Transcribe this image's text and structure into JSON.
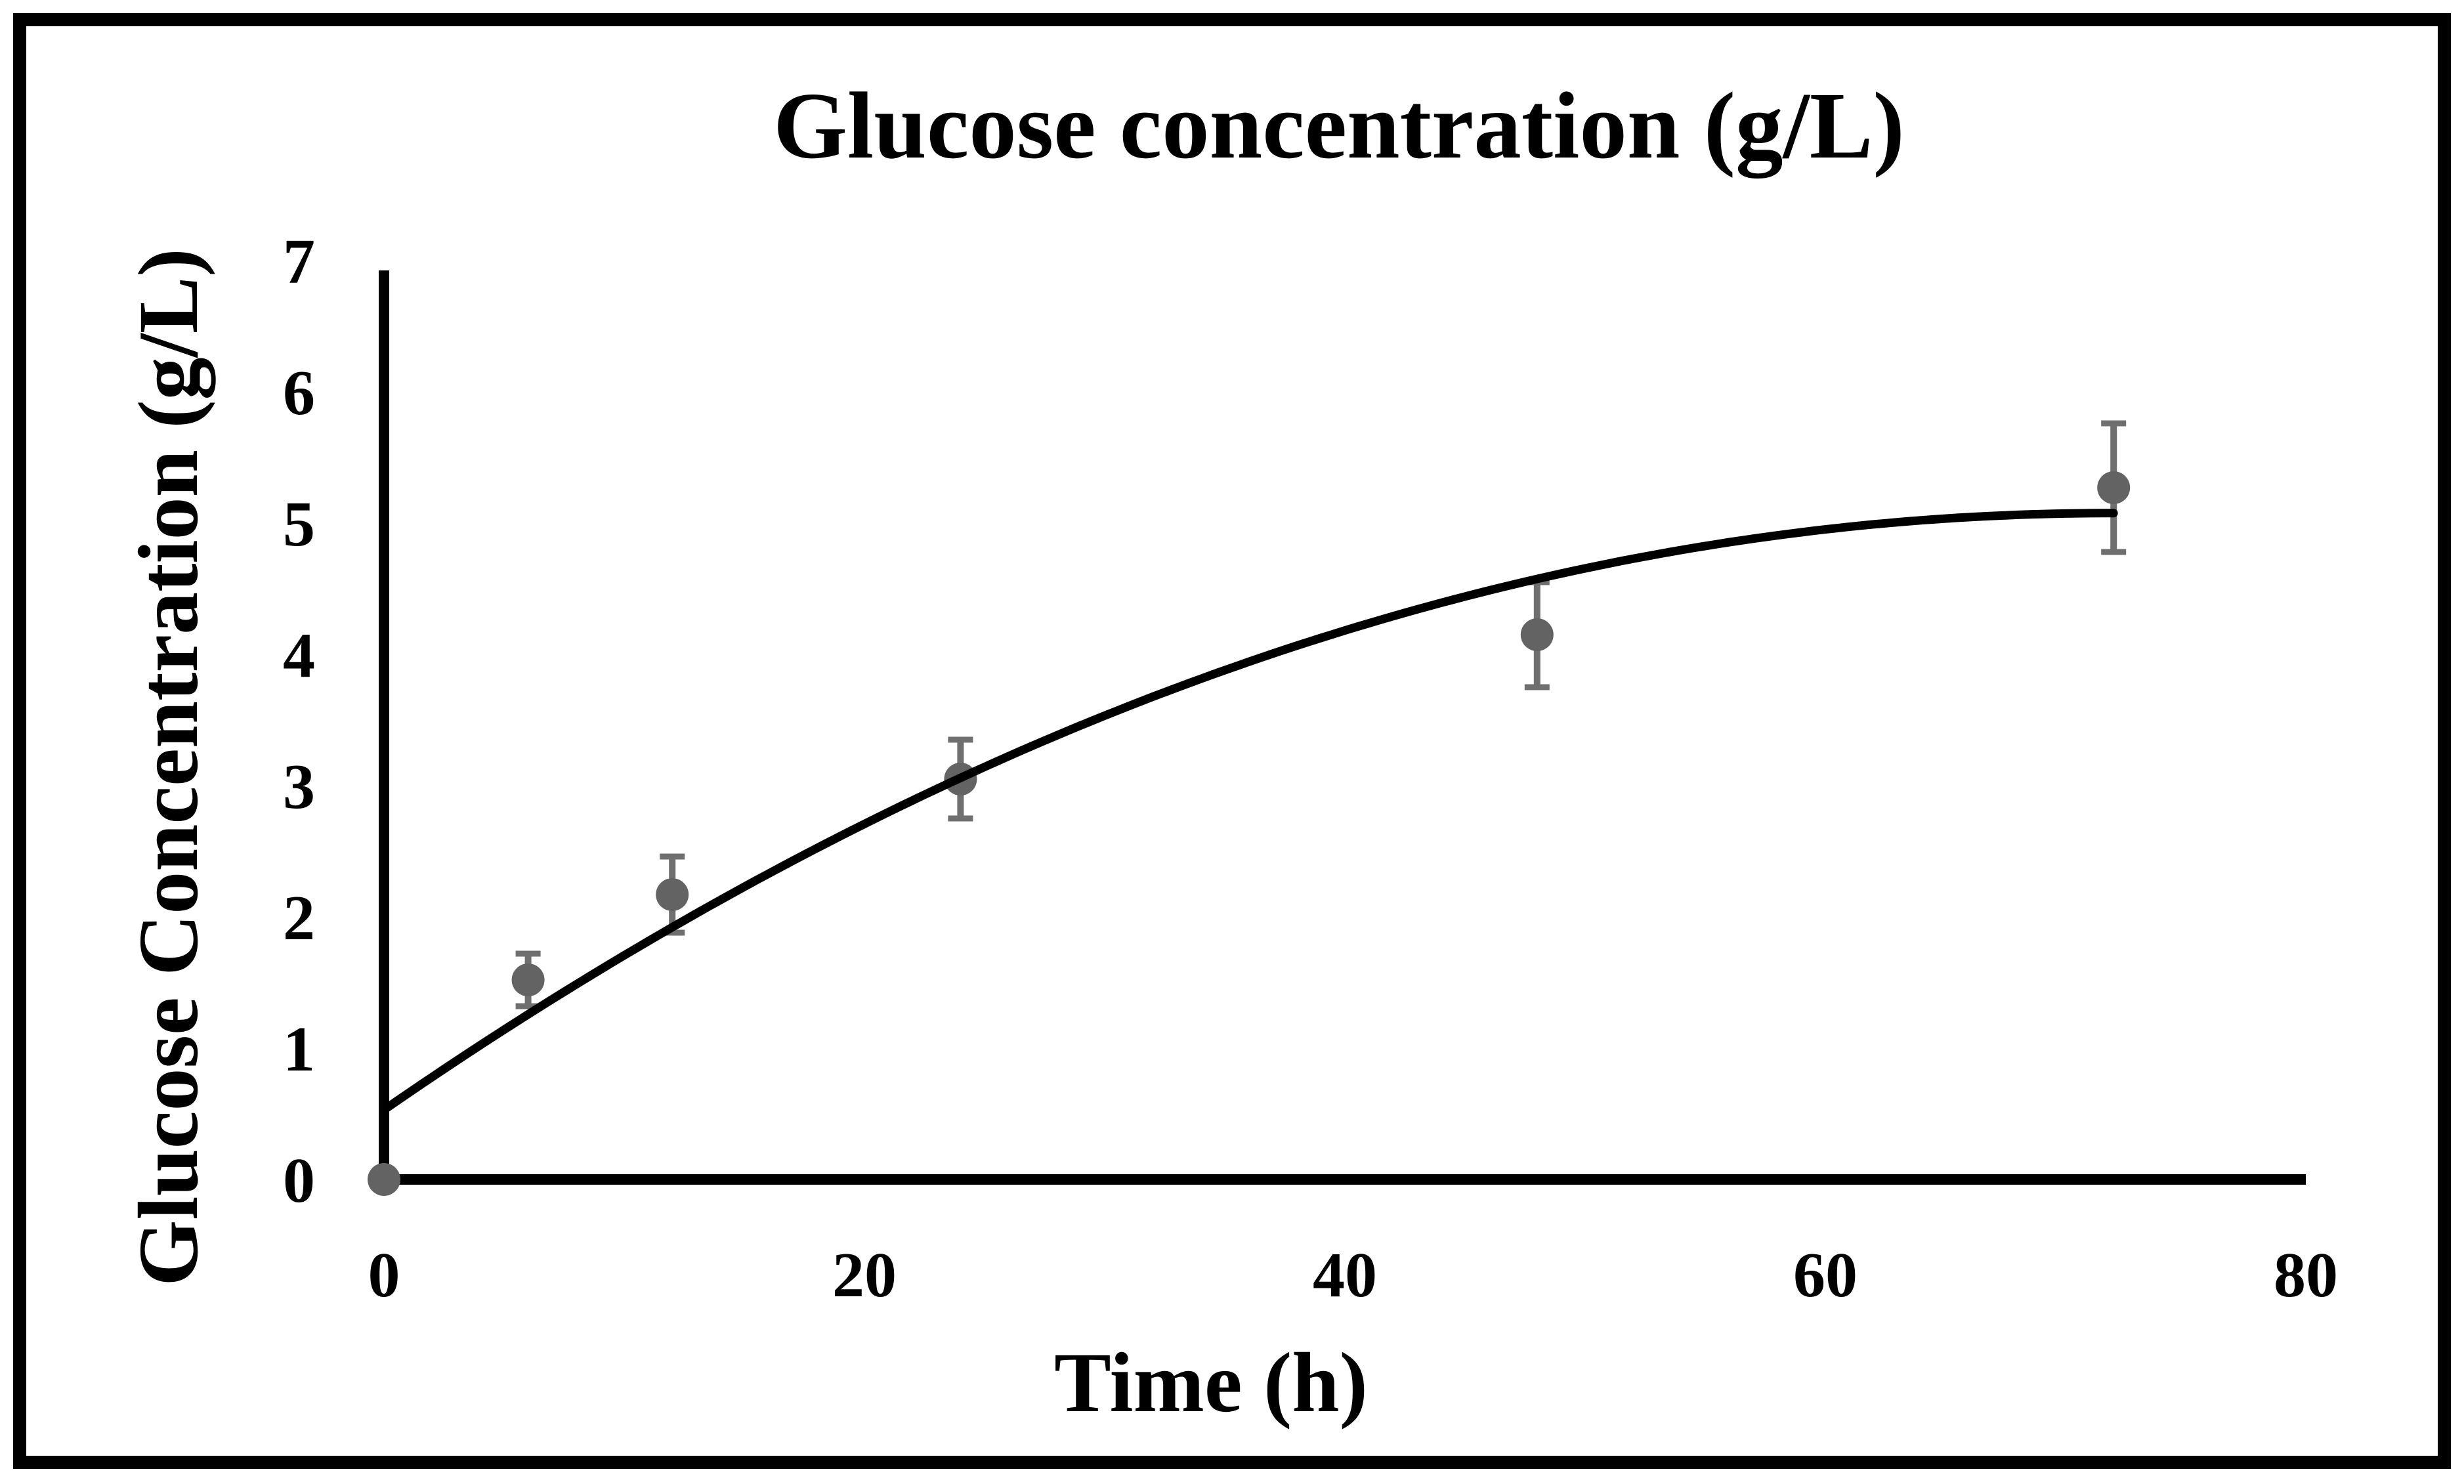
{
  "chart_data": {
    "type": "scatter",
    "title": "Glucose concentration (g/L)",
    "xlabel": "Time (h)",
    "ylabel": "Glucose Concentration (g/L)",
    "xlim": [
      0,
      80
    ],
    "ylim": [
      0,
      7
    ],
    "x_ticks": [
      0,
      20,
      40,
      60,
      80
    ],
    "y_ticks": [
      0,
      1,
      2,
      3,
      4,
      5,
      6,
      7
    ],
    "grid": false,
    "legend": false,
    "series": [
      {
        "name": "glucose-measurements",
        "marker": "circle",
        "marker_color": "#636363",
        "error_bar_color": "#6f6f6f",
        "points": [
          {
            "t": 0,
            "y": 0,
            "err": 0
          },
          {
            "t": 6,
            "y": 1.52,
            "err": 0.2
          },
          {
            "t": 12,
            "y": 2.17,
            "err": 0.29
          },
          {
            "t": 24,
            "y": 3.05,
            "err": 0.3
          },
          {
            "t": 48,
            "y": 4.15,
            "err": 0.4
          },
          {
            "t": 72,
            "y": 5.27,
            "err": 0.49
          }
        ]
      }
    ],
    "trendline": {
      "type": "polynomial-2",
      "a0": 0.53,
      "a1": 0.1265,
      "a2": -0.00088,
      "t_start": 0,
      "t_end": 72,
      "color": "#000000"
    },
    "colors": {
      "axis": "#000000",
      "frame": "#000000",
      "background": "#ffffff",
      "text": "#000000"
    }
  }
}
